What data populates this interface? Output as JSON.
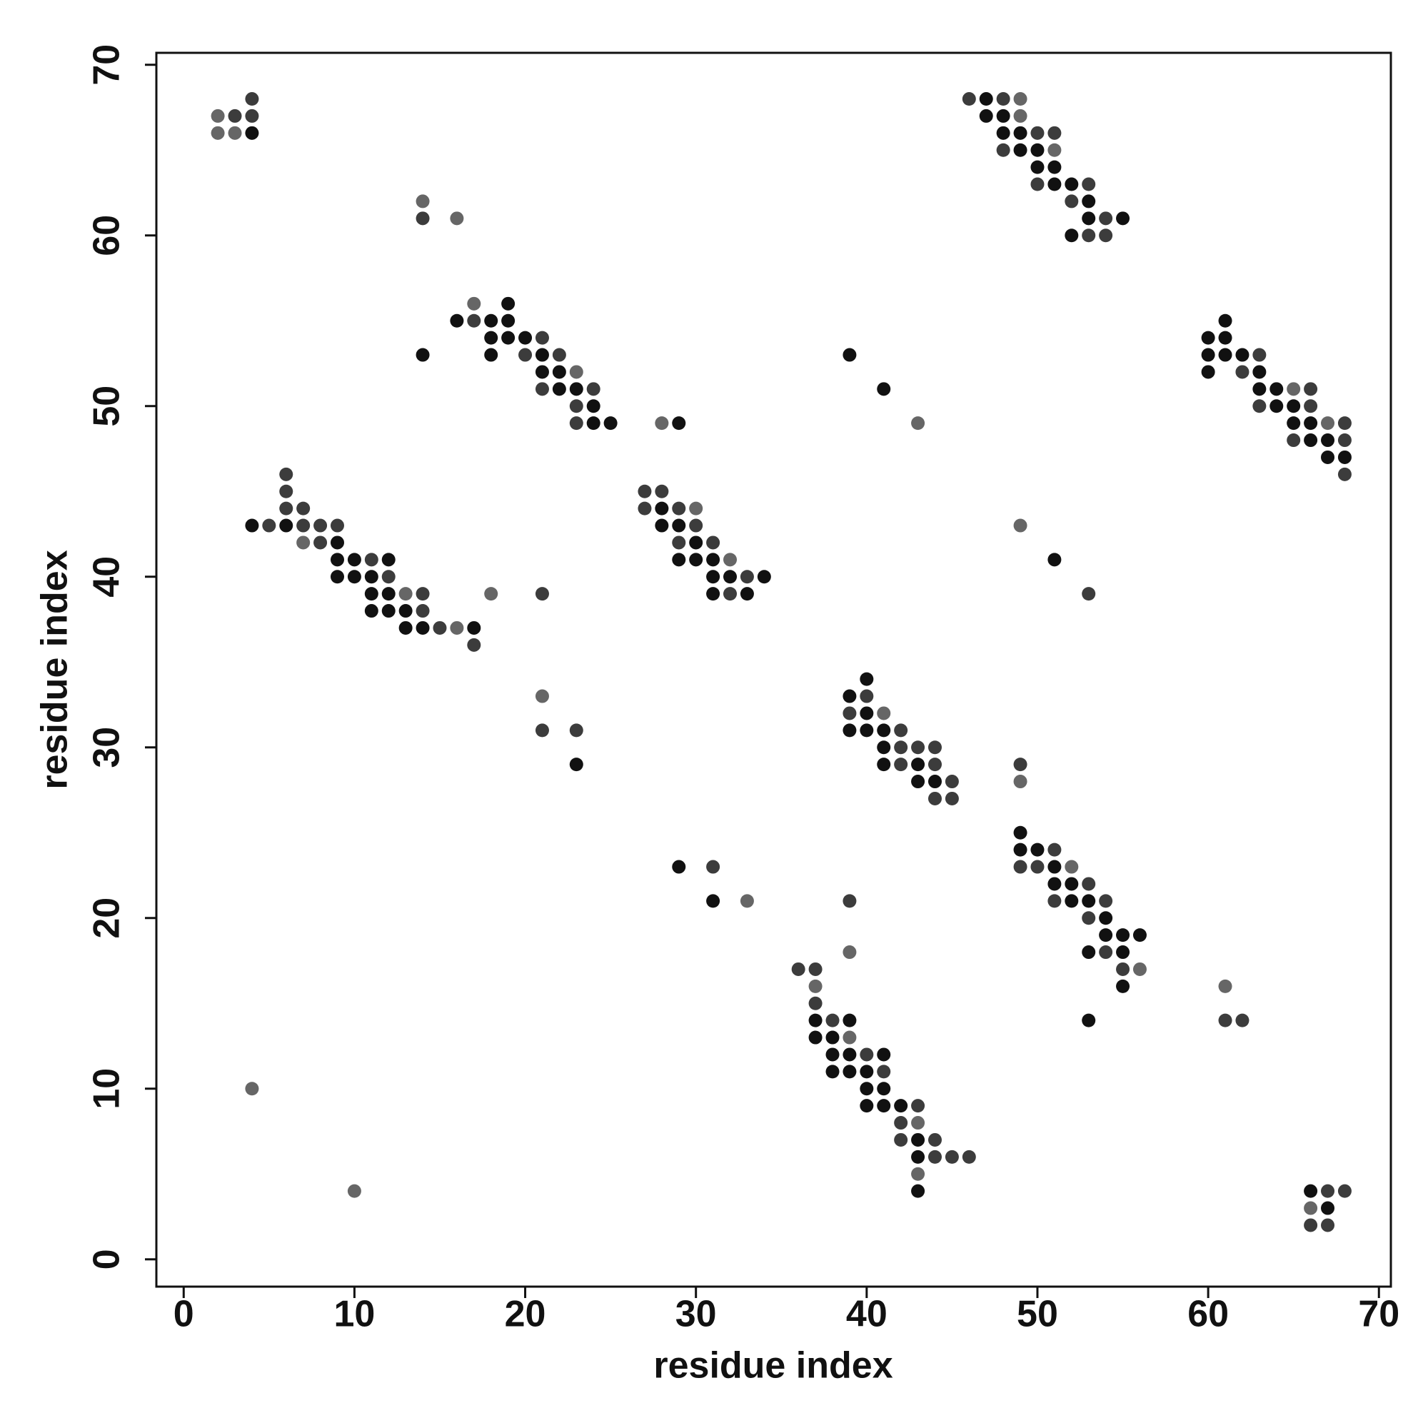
{
  "chart_data": {
    "type": "scatter",
    "xlabel": "residue index",
    "ylabel": "residue index",
    "xlim": [
      -1.6,
      70.7
    ],
    "ylim": [
      -1.6,
      70.7
    ],
    "xticks": [
      0,
      10,
      20,
      30,
      40,
      50,
      60,
      70
    ],
    "yticks": [
      0,
      10,
      20,
      30,
      40,
      50,
      60,
      70
    ],
    "series": [
      {
        "color": "#111111",
        "x": [
          4,
          16,
          18,
          19,
          19,
          18,
          19,
          20,
          18,
          21,
          21,
          22,
          22,
          23,
          24,
          24,
          25,
          14,
          29,
          39,
          41,
          47,
          47,
          48,
          48,
          49,
          49,
          50,
          50,
          51,
          51,
          52,
          53,
          53,
          55,
          52,
          60,
          61,
          61,
          60,
          61,
          62,
          60,
          63,
          63,
          64,
          64,
          65,
          65,
          66,
          66,
          67,
          67,
          68,
          4,
          6,
          9,
          9,
          10,
          9,
          10,
          12,
          11,
          11,
          12,
          11,
          12,
          13,
          13,
          14,
          17,
          28,
          28,
          29,
          30,
          29,
          30,
          31,
          31,
          32,
          34,
          31,
          33,
          51,
          23,
          39,
          40,
          40,
          39,
          40,
          41,
          41,
          41,
          43,
          43,
          44,
          49,
          49,
          50,
          51,
          51,
          52,
          52,
          53,
          54,
          54,
          55,
          56,
          53,
          55,
          55,
          53,
          29,
          31,
          37,
          39,
          37,
          38,
          38,
          39,
          41,
          38,
          39,
          40,
          40,
          41,
          40,
          41,
          42,
          43,
          43,
          43,
          66,
          67
        ],
        "y": [
          66,
          55,
          55,
          56,
          55,
          54,
          54,
          54,
          53,
          53,
          52,
          52,
          51,
          51,
          50,
          49,
          49,
          53,
          49,
          53,
          51,
          68,
          67,
          67,
          66,
          66,
          65,
          65,
          64,
          64,
          63,
          63,
          62,
          61,
          61,
          60,
          54,
          55,
          54,
          53,
          53,
          53,
          52,
          52,
          51,
          51,
          50,
          50,
          49,
          49,
          48,
          48,
          47,
          47,
          43,
          43,
          42,
          41,
          41,
          40,
          40,
          41,
          40,
          39,
          39,
          38,
          38,
          38,
          37,
          37,
          37,
          44,
          43,
          43,
          42,
          41,
          41,
          41,
          40,
          40,
          40,
          39,
          39,
          41,
          29,
          33,
          34,
          32,
          31,
          31,
          31,
          30,
          29,
          29,
          28,
          28,
          25,
          24,
          24,
          23,
          22,
          22,
          21,
          21,
          20,
          19,
          19,
          19,
          18,
          18,
          16,
          14,
          23,
          21,
          14,
          14,
          13,
          13,
          12,
          12,
          12,
          11,
          11,
          11,
          10,
          10,
          9,
          9,
          9,
          7,
          6,
          4,
          4,
          3
        ]
      },
      {
        "color": "#3c3c3c",
        "x": [
          3,
          4,
          4,
          14,
          17,
          20,
          21,
          22,
          21,
          24,
          23,
          23,
          46,
          48,
          50,
          51,
          48,
          50,
          53,
          52,
          54,
          53,
          54,
          63,
          62,
          66,
          63,
          66,
          68,
          65,
          68,
          68,
          5,
          6,
          6,
          6,
          7,
          7,
          8,
          8,
          9,
          11,
          12,
          14,
          14,
          15,
          17,
          21,
          27,
          28,
          27,
          29,
          30,
          29,
          31,
          33,
          32,
          53,
          21,
          23,
          39,
          40,
          42,
          42,
          43,
          44,
          42,
          44,
          45,
          44,
          45,
          49,
          51,
          49,
          50,
          53,
          51,
          54,
          53,
          54,
          55,
          31,
          39,
          61,
          62,
          36,
          37,
          37,
          38,
          40,
          41,
          43,
          42,
          42,
          44,
          44,
          45,
          46,
          67,
          68,
          66,
          67
        ],
        "y": [
          67,
          68,
          67,
          61,
          55,
          53,
          54,
          53,
          51,
          51,
          50,
          49,
          68,
          68,
          66,
          66,
          65,
          63,
          63,
          62,
          61,
          60,
          60,
          53,
          52,
          51,
          50,
          50,
          49,
          48,
          48,
          46,
          43,
          46,
          45,
          44,
          44,
          43,
          43,
          42,
          43,
          41,
          40,
          39,
          38,
          37,
          36,
          39,
          45,
          45,
          44,
          44,
          43,
          42,
          42,
          40,
          39,
          39,
          31,
          31,
          32,
          33,
          31,
          30,
          30,
          30,
          29,
          29,
          28,
          27,
          27,
          29,
          24,
          23,
          23,
          22,
          21,
          21,
          20,
          18,
          17,
          23,
          21,
          14,
          14,
          17,
          17,
          15,
          14,
          12,
          11,
          9,
          8,
          7,
          7,
          6,
          6,
          6,
          4,
          4,
          2,
          2
        ]
      },
      {
        "color": "#666666",
        "x": [
          2,
          2,
          3,
          14,
          16,
          17,
          23,
          28,
          43,
          49,
          49,
          51,
          65,
          67,
          7,
          13,
          16,
          18,
          30,
          32,
          49,
          21,
          41,
          49,
          52,
          56,
          33,
          39,
          61,
          37,
          39,
          43,
          43,
          4,
          10,
          66
        ],
        "y": [
          67,
          66,
          66,
          62,
          61,
          56,
          52,
          49,
          49,
          68,
          67,
          65,
          51,
          49,
          42,
          39,
          37,
          39,
          44,
          41,
          43,
          33,
          32,
          28,
          23,
          17,
          21,
          18,
          16,
          16,
          13,
          8,
          5,
          10,
          4,
          3
        ]
      }
    ]
  }
}
